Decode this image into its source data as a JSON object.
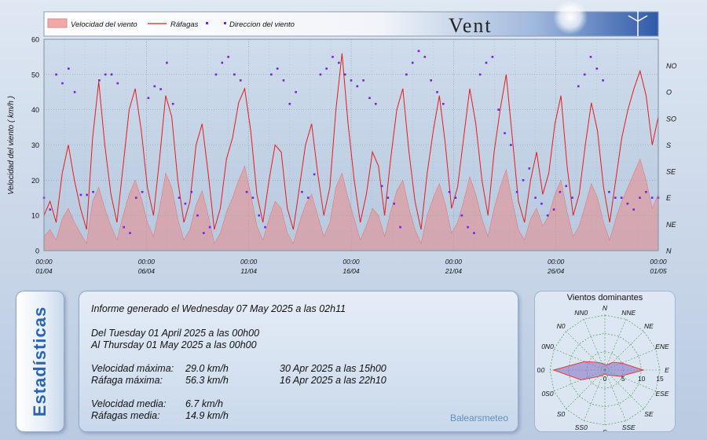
{
  "banner": {
    "title": "Vent"
  },
  "colors": {
    "speed_fill": "#e98a8a",
    "gust_line": "#e81a1a",
    "direction_dots": "#7a1ee6"
  },
  "chart_data": [
    {
      "type": "line",
      "legend": [
        "Velocidad del viento",
        "Ráfagas",
        "Direccion del viento"
      ],
      "legend_position": "top-left",
      "ylabel": "Velocidad del viento  ( km/h )",
      "ylim": [
        0,
        60
      ],
      "y_ticks": [
        "0",
        "10",
        "20",
        "30",
        "40",
        "50",
        "60"
      ],
      "y2_ticks": [
        "N",
        "NE",
        "E",
        "SE",
        "S",
        "SO",
        "O",
        "NO"
      ],
      "x_ticks": [
        {
          "time": "00:00",
          "date": "01/04"
        },
        {
          "time": "00:00",
          "date": "06/04"
        },
        {
          "time": "00:00",
          "date": "11/04"
        },
        {
          "time": "00:00",
          "date": "16/04"
        },
        {
          "time": "00:00",
          "date": "21/04"
        },
        {
          "time": "00:00",
          "date": "26/04"
        },
        {
          "time": "00:00",
          "date": "01/05"
        }
      ],
      "xlim": [
        "2025-04-01 00:00",
        "2025-05-01 00:00"
      ],
      "grid": true,
      "series": [
        {
          "name": "Velocidad del viento",
          "type": "area",
          "values": [
            4,
            6,
            3,
            9,
            12,
            8,
            5,
            2,
            14,
            18,
            12,
            7,
            3,
            10,
            16,
            20,
            15,
            8,
            4,
            12,
            22,
            18,
            9,
            3,
            6,
            13,
            17,
            10,
            2,
            5,
            11,
            15,
            20,
            24,
            16,
            7,
            3,
            9,
            14,
            12,
            5,
            2,
            8,
            13,
            16,
            10,
            4,
            8,
            18,
            22,
            15,
            9,
            3,
            7,
            12,
            10,
            4,
            11,
            17,
            20,
            12,
            6,
            2,
            10,
            15,
            19,
            13,
            5,
            8,
            14,
            21,
            16,
            9,
            4,
            12,
            18,
            23,
            14,
            6,
            3,
            9,
            12,
            7,
            10,
            16,
            20,
            11,
            4,
            7,
            13,
            19,
            15,
            8,
            3,
            9,
            14,
            18,
            22,
            26,
            20,
            12,
            16
          ]
        },
        {
          "name": "Ráfagas",
          "type": "line",
          "values": [
            10,
            14,
            8,
            22,
            30,
            20,
            12,
            6,
            32,
            48,
            30,
            16,
            8,
            24,
            40,
            46,
            34,
            18,
            10,
            26,
            44,
            38,
            20,
            8,
            14,
            30,
            36,
            22,
            6,
            12,
            26,
            32,
            42,
            46,
            34,
            16,
            8,
            20,
            30,
            28,
            12,
            6,
            18,
            30,
            36,
            22,
            10,
            18,
            40,
            56,
            36,
            20,
            8,
            16,
            28,
            24,
            10,
            26,
            40,
            46,
            28,
            14,
            6,
            22,
            34,
            44,
            30,
            12,
            18,
            32,
            46,
            36,
            20,
            10,
            28,
            40,
            50,
            32,
            14,
            8,
            20,
            28,
            16,
            22,
            36,
            44,
            24,
            10,
            16,
            30,
            42,
            34,
            18,
            8,
            20,
            32,
            40,
            46,
            51,
            44,
            30,
            38
          ]
        },
        {
          "name": "Direccion del viento",
          "type": "scatter",
          "values_deg": [
            90,
            70,
            300,
            285,
            310,
            270,
            95,
            95,
            100,
            290,
            300,
            300,
            285,
            40,
            30,
            90,
            100,
            260,
            280,
            275,
            320,
            250,
            90,
            80,
            100,
            60,
            30,
            40,
            300,
            320,
            330,
            300,
            290,
            100,
            90,
            60,
            40,
            300,
            310,
            290,
            250,
            270,
            100,
            90,
            130,
            300,
            310,
            330,
            320,
            300,
            290,
            280,
            290,
            260,
            250,
            110,
            90,
            80,
            40,
            300,
            320,
            340,
            330,
            290,
            270,
            250,
            100,
            90,
            60,
            40,
            30,
            300,
            320,
            330,
            240,
            200,
            180,
            100,
            120,
            140,
            90,
            80,
            60,
            70,
            100,
            110,
            90,
            280,
            300,
            330,
            310,
            290,
            100,
            90,
            90,
            80,
            70,
            90,
            100,
            90,
            90
          ]
        }
      ]
    },
    {
      "type": "radar",
      "title": "Vientos dominantes",
      "directions": [
        "N",
        "NNE",
        "NE",
        "ENE",
        "E",
        "ESE",
        "SE",
        "SSE",
        "S",
        "SS0",
        "S0",
        "0S0",
        "0",
        "0N0",
        "N0",
        "NN0"
      ],
      "radial_ticks": [
        "0",
        "5",
        "10",
        "15"
      ],
      "rmax": 15,
      "values": [
        1.5,
        1.5,
        3,
        5,
        10.5,
        4.5,
        2,
        1.5,
        1,
        1.5,
        2.5,
        7,
        14,
        6,
        3,
        2
      ]
    }
  ],
  "stats": {
    "tab_label": "Estadísticas",
    "generated": "Informe generado el Wednesday 07 May 2025 a las 02h11",
    "period_from": "Del Tuesday 01 April 2025 a las 00h00",
    "period_to": "Al Thursday 01 May 2025 a las 00h00",
    "max_speed_label": "Velocidad máxima:",
    "max_speed_value": "29.0 km/h",
    "max_speed_time": "30 Apr 2025 a las 15h00",
    "max_gust_label": "Ráfaga máxima:",
    "max_gust_value": "56.3 km/h",
    "max_gust_time": "16 Apr 2025 a las 22h10",
    "avg_speed_label": "Velocidad media:",
    "avg_speed_value": "6.7 km/h",
    "avg_gust_label": "Ráfagas media:",
    "avg_gust_value": "14.9 km/h",
    "brand": "Balearsmeteo"
  }
}
